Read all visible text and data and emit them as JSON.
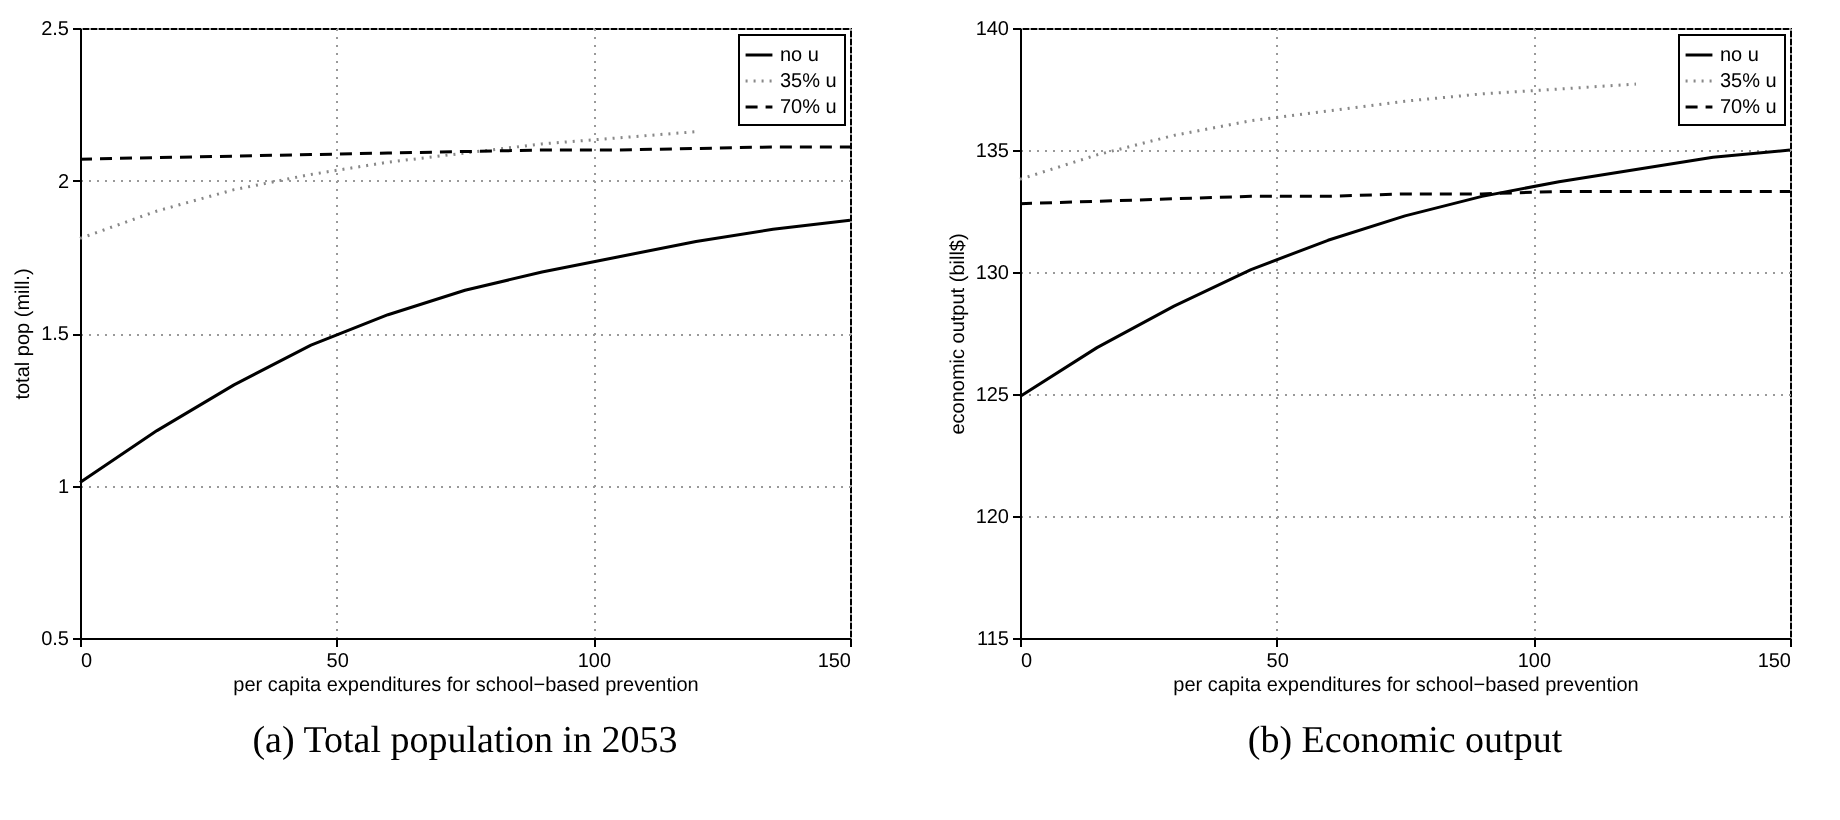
{
  "chart_data": [
    {
      "type": "line",
      "title": "(a)  Total population in 2053",
      "xlabel": "per capita expenditures for school−based prevention",
      "ylabel": "total pop (mill.)",
      "x": [
        0,
        15,
        30,
        45,
        60,
        75,
        90,
        105,
        120,
        135,
        150
      ],
      "xlim": [
        0,
        150
      ],
      "xticks": [
        0,
        50,
        100,
        150
      ],
      "ylim": [
        0.5,
        2.5
      ],
      "yticks": [
        0.5,
        1,
        1.5,
        2,
        2.5
      ],
      "grid": true,
      "legend": "top right",
      "series": [
        {
          "name": "no u",
          "color": "#000000",
          "line_style": "solid",
          "values": [
            1.01,
            1.18,
            1.33,
            1.46,
            1.56,
            1.64,
            1.7,
            1.75,
            1.8,
            1.84,
            1.87
          ]
        },
        {
          "name": "35% u",
          "color": "#888888",
          "line_style": "dotted",
          "values": [
            1.81,
            1.9,
            1.97,
            2.02,
            2.06,
            2.09,
            2.12,
            2.14,
            2.16,
            null,
            null
          ]
        },
        {
          "name": "70% u",
          "color": "#000000",
          "line_style": "dashed",
          "values": [
            2.07,
            2.075,
            2.08,
            2.085,
            2.09,
            2.095,
            2.1,
            2.1,
            2.105,
            2.11,
            2.11
          ]
        }
      ]
    },
    {
      "type": "line",
      "title": "(b)  Economic output",
      "xlabel": "per capita expenditures for school−based prevention",
      "ylabel": "economic output (bill$)",
      "x": [
        0,
        15,
        30,
        45,
        60,
        75,
        90,
        105,
        120,
        135,
        150
      ],
      "xlim": [
        0,
        150
      ],
      "xticks": [
        0,
        50,
        100,
        150
      ],
      "ylim": [
        115,
        140
      ],
      "yticks": [
        115,
        120,
        125,
        130,
        135,
        140
      ],
      "grid": true,
      "legend": "top right",
      "series": [
        {
          "name": "no u",
          "color": "#000000",
          "line_style": "solid",
          "values": [
            124.9,
            126.9,
            128.6,
            130.1,
            131.3,
            132.3,
            133.1,
            133.7,
            134.2,
            134.7,
            135.0
          ]
        },
        {
          "name": "35% u",
          "color": "#888888",
          "line_style": "dotted",
          "values": [
            133.8,
            134.8,
            135.6,
            136.2,
            136.6,
            137.0,
            137.3,
            137.5,
            137.7,
            null,
            null
          ]
        },
        {
          "name": "70% u",
          "color": "#000000",
          "line_style": "dashed",
          "values": [
            132.8,
            132.9,
            133.0,
            133.1,
            133.1,
            133.2,
            133.2,
            133.3,
            133.3,
            133.3,
            133.3
          ]
        }
      ]
    }
  ]
}
